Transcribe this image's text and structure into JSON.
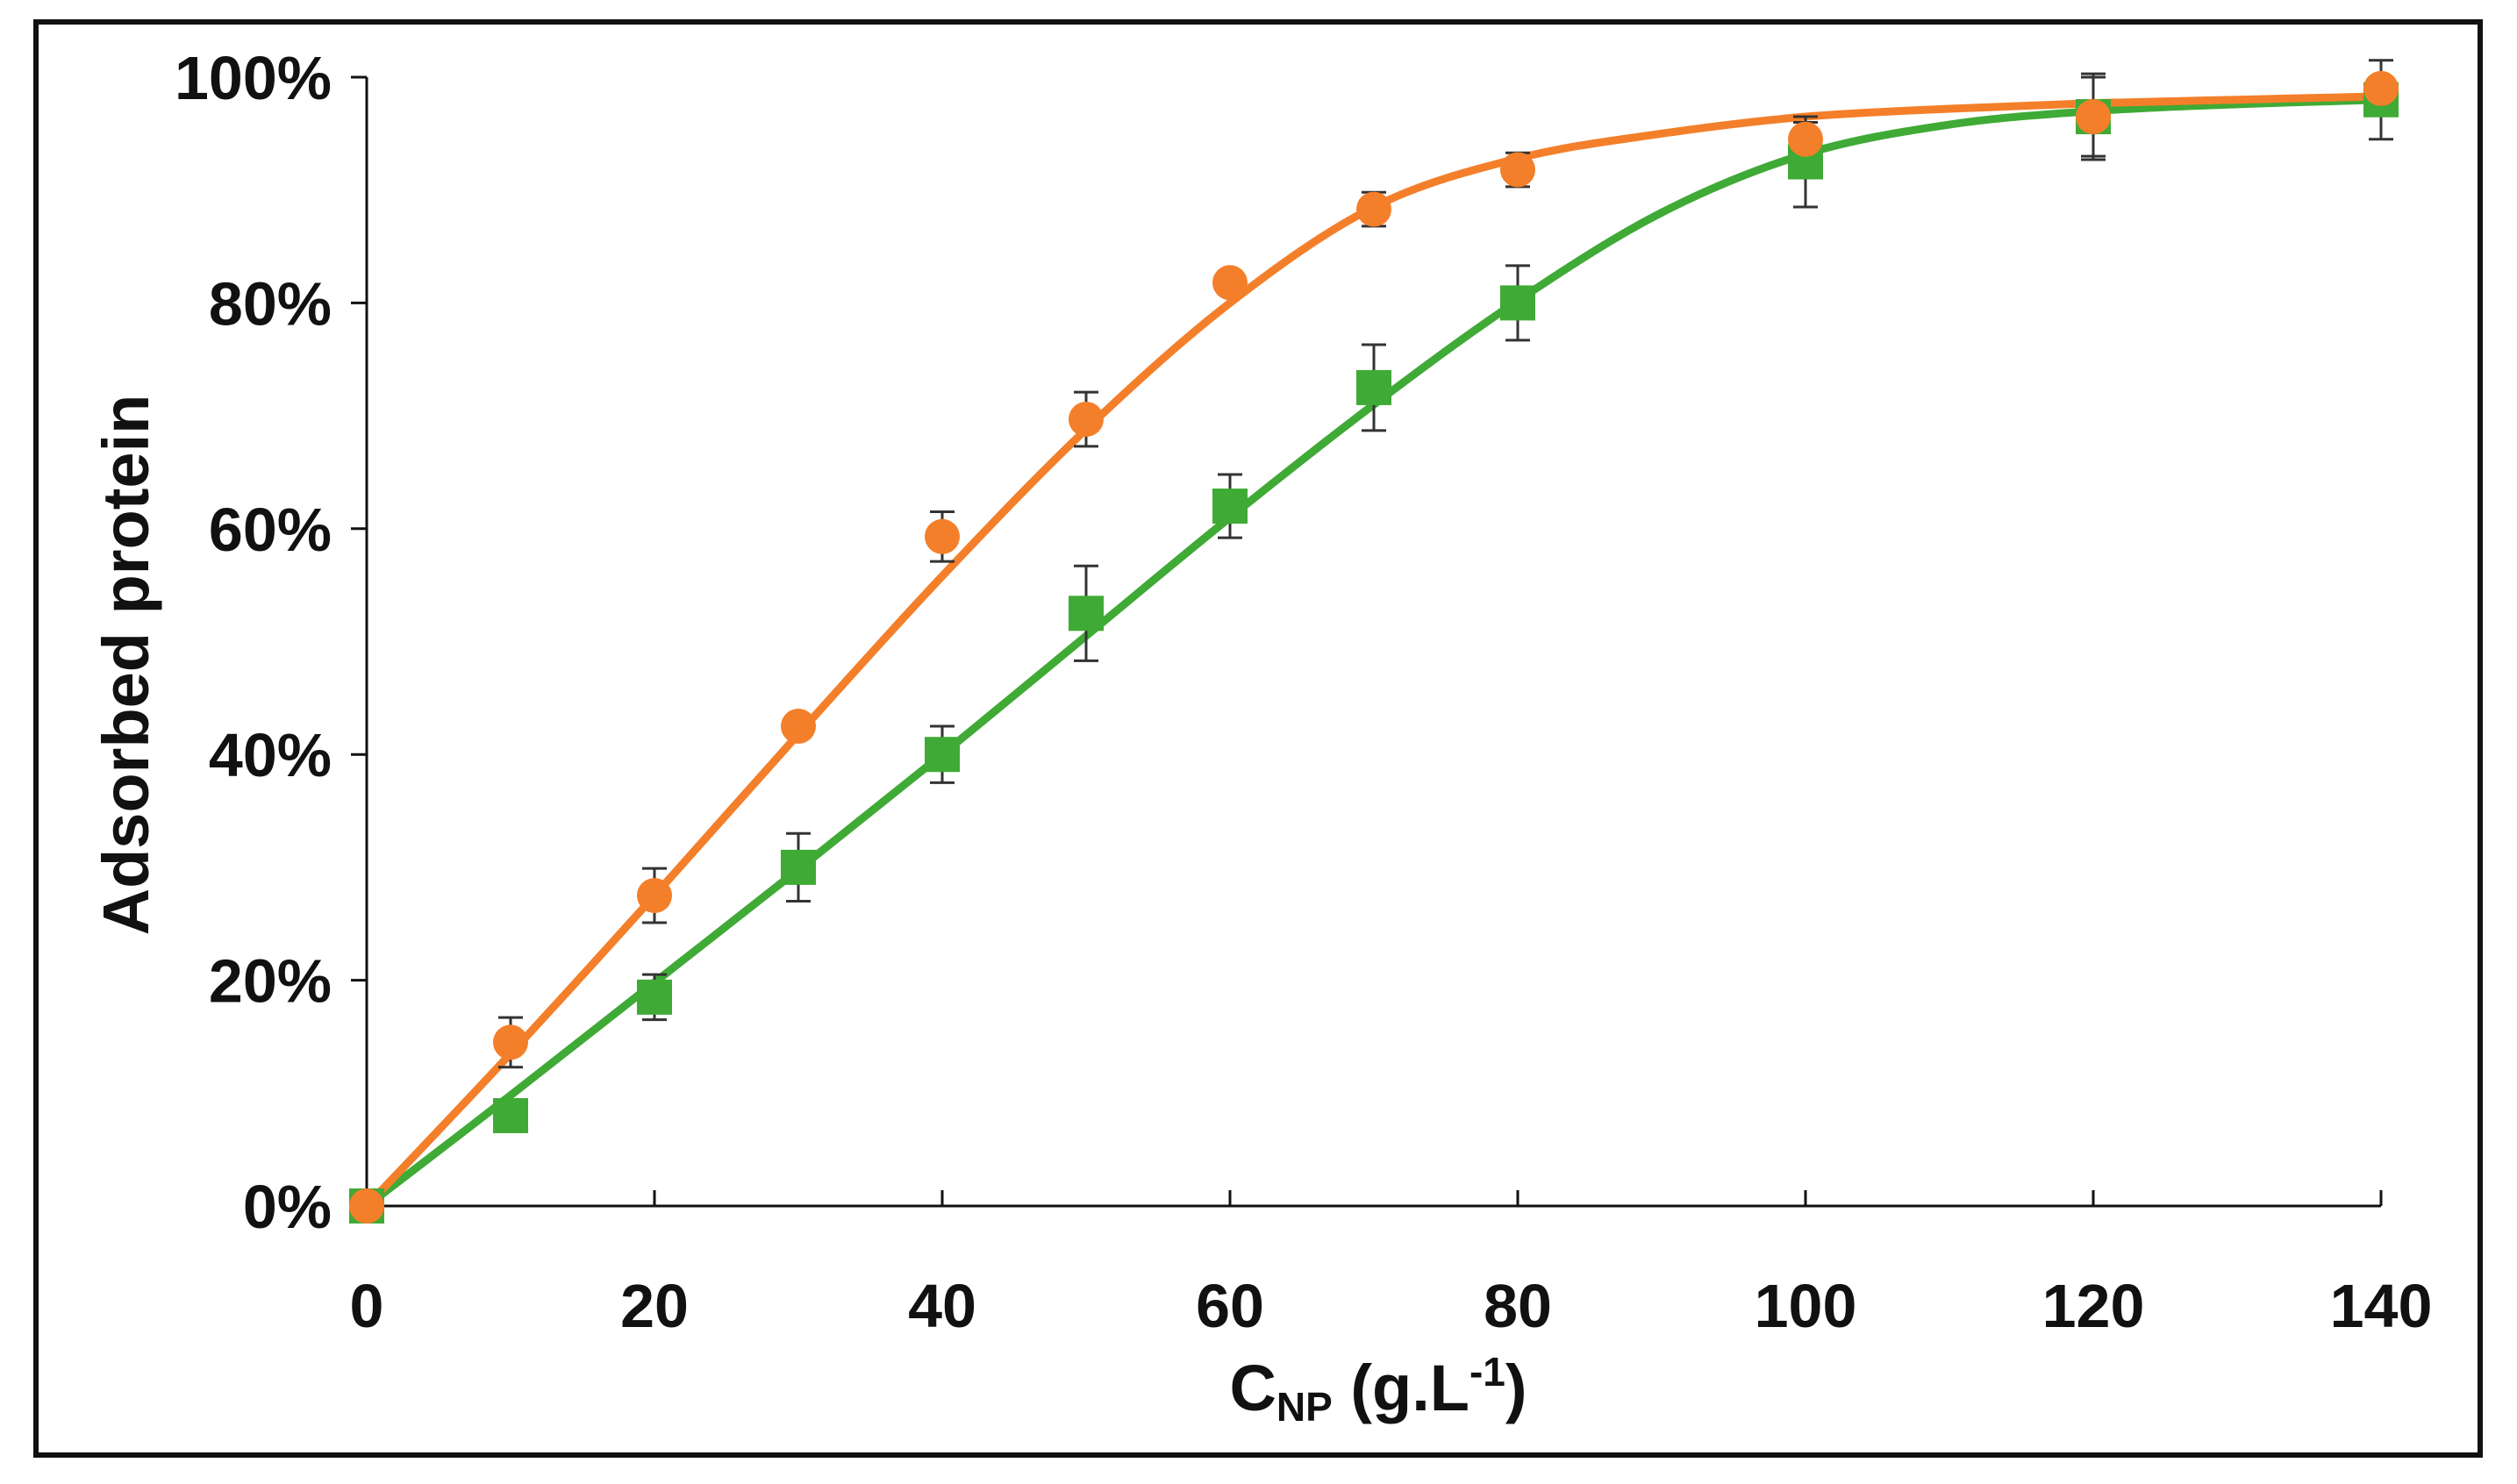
{
  "chart_data": {
    "type": "line",
    "title": "",
    "xlabel": {
      "main": "C",
      "sub": "NP",
      "unit_open": " (g.L",
      "sup": "-1",
      "unit_close": ")"
    },
    "ylabel": "Adsorbed protein",
    "xlim": [
      0,
      140
    ],
    "ylim": [
      0,
      100
    ],
    "x_ticks": [
      0,
      20,
      40,
      60,
      80,
      100,
      120,
      140
    ],
    "x_tick_labels": [
      "0",
      "20",
      "40",
      "60",
      "80",
      "100",
      "120",
      "140"
    ],
    "y_ticks": [
      0,
      20,
      40,
      60,
      80,
      100
    ],
    "y_tick_labels": [
      "0%",
      "20%",
      "40%",
      "60%",
      "80%",
      "100%"
    ],
    "grid": false,
    "legend": "none",
    "series": [
      {
        "name": "orange-circles",
        "color": "#F47F2A",
        "marker": "circle",
        "x": [
          0,
          10,
          20,
          30,
          40,
          50,
          60,
          70,
          80,
          100,
          120,
          140
        ],
        "y": [
          0,
          14.5,
          27.5,
          42.5,
          59.3,
          69.7,
          81.8,
          88.3,
          91.8,
          94.5,
          96.5,
          99.0
        ],
        "err": [
          0,
          2.2,
          2.4,
          0.8,
          2.2,
          2.4,
          1.0,
          1.5,
          1.5,
          1.5,
          3.5,
          0.5
        ],
        "fit_x": [
          0,
          10,
          20,
          30,
          40,
          50,
          60,
          70,
          80,
          90,
          100,
          110,
          120,
          130,
          140
        ],
        "fit_y": [
          0,
          13.5,
          27.5,
          41.8,
          55.8,
          68.8,
          80.0,
          88.5,
          92.8,
          95.0,
          96.5,
          97.2,
          97.7,
          98.0,
          98.3
        ]
      },
      {
        "name": "green-squares",
        "color": "#3FAA35",
        "marker": "square",
        "x": [
          0,
          10,
          20,
          30,
          40,
          50,
          60,
          70,
          80,
          100,
          120,
          140
        ],
        "y": [
          0,
          8.0,
          18.5,
          30.0,
          40.0,
          52.5,
          62.0,
          72.5,
          80.0,
          92.5,
          96.5,
          98.0
        ],
        "err": [
          0,
          1.2,
          2.0,
          3.0,
          2.5,
          4.2,
          2.8,
          3.8,
          3.3,
          4.0,
          3.8,
          3.5
        ],
        "fit_x": [
          0,
          10,
          20,
          30,
          40,
          50,
          60,
          70,
          80,
          90,
          100,
          110,
          120,
          130,
          140
        ],
        "fit_y": [
          0,
          9.8,
          19.8,
          29.8,
          40.0,
          50.5,
          61.0,
          71.0,
          80.2,
          88.0,
          93.2,
          95.8,
          97.0,
          97.6,
          98.0
        ]
      }
    ]
  }
}
